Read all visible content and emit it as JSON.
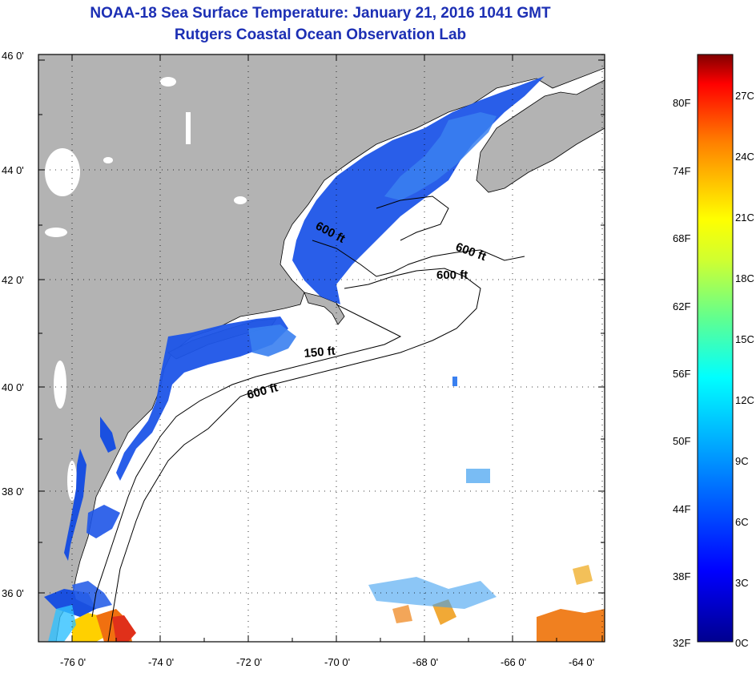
{
  "header": {
    "title": "NOAA-18 Sea Surface Temperature:  January 21, 2016 1041 GMT",
    "subtitle": "Rutgers Coastal Ocean Observation Lab"
  },
  "axes": {
    "latitudes": [
      "46 0'",
      "44 0'",
      "42 0'",
      "40 0'",
      "38 0'",
      "36 0'"
    ],
    "longitudes": [
      "-76 0'",
      "-74 0'",
      "-72 0'",
      "-70 0'",
      "-68 0'",
      "-66 0'",
      "-64 0'"
    ]
  },
  "contours": {
    "labels": [
      "600 ft",
      "600 ft",
      "600 ft",
      "150 ft",
      "600 ft"
    ]
  },
  "colorbar": {
    "fahrenheit": [
      "80F",
      "74F",
      "68F",
      "62F",
      "56F",
      "50F",
      "44F",
      "38F",
      "32F"
    ],
    "celsius": [
      "27C",
      "24C",
      "21C",
      "18C",
      "15C",
      "12C",
      "9C",
      "6C",
      "3C",
      "0C"
    ]
  },
  "colors": {
    "land": "#b3b3b3",
    "title": "#1c2fb4",
    "cold": "#1a3fe0",
    "warm": "#e8501a"
  }
}
